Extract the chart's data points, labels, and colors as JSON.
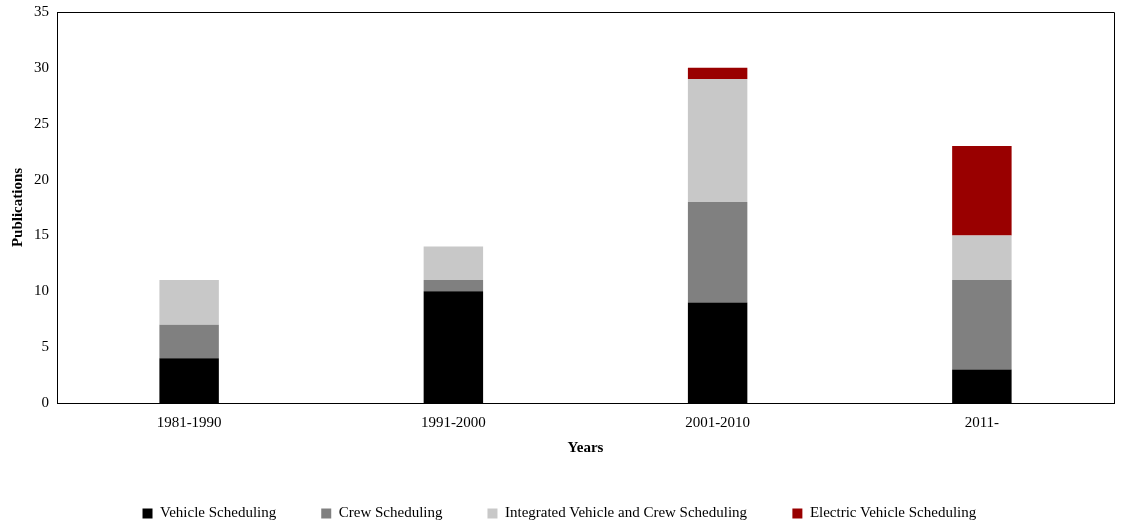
{
  "chart_data": {
    "type": "bar",
    "stacked": true,
    "xlabel": "Years",
    "ylabel": "Publications",
    "categories": [
      "1981-1990",
      "1991-2000",
      "2001-2010",
      "2011-"
    ],
    "series": [
      {
        "name": "Vehicle Scheduling",
        "color": "#000000",
        "values": [
          4,
          10,
          9,
          3
        ]
      },
      {
        "name": "Crew Scheduling",
        "color": "#808080",
        "values": [
          3,
          1,
          9,
          8
        ]
      },
      {
        "name": "Integrated Vehicle and Crew Scheduling",
        "color": "#c8c8c8",
        "values": [
          4,
          3,
          11,
          4
        ]
      },
      {
        "name": "Electric Vehicle Scheduling",
        "color": "#990000",
        "values": [
          0,
          0,
          1,
          8
        ]
      }
    ],
    "ylim": [
      0,
      35
    ],
    "yticks": [
      0,
      5,
      10,
      15,
      20,
      25,
      30,
      35
    ],
    "grid": false,
    "legend": "bottom"
  }
}
